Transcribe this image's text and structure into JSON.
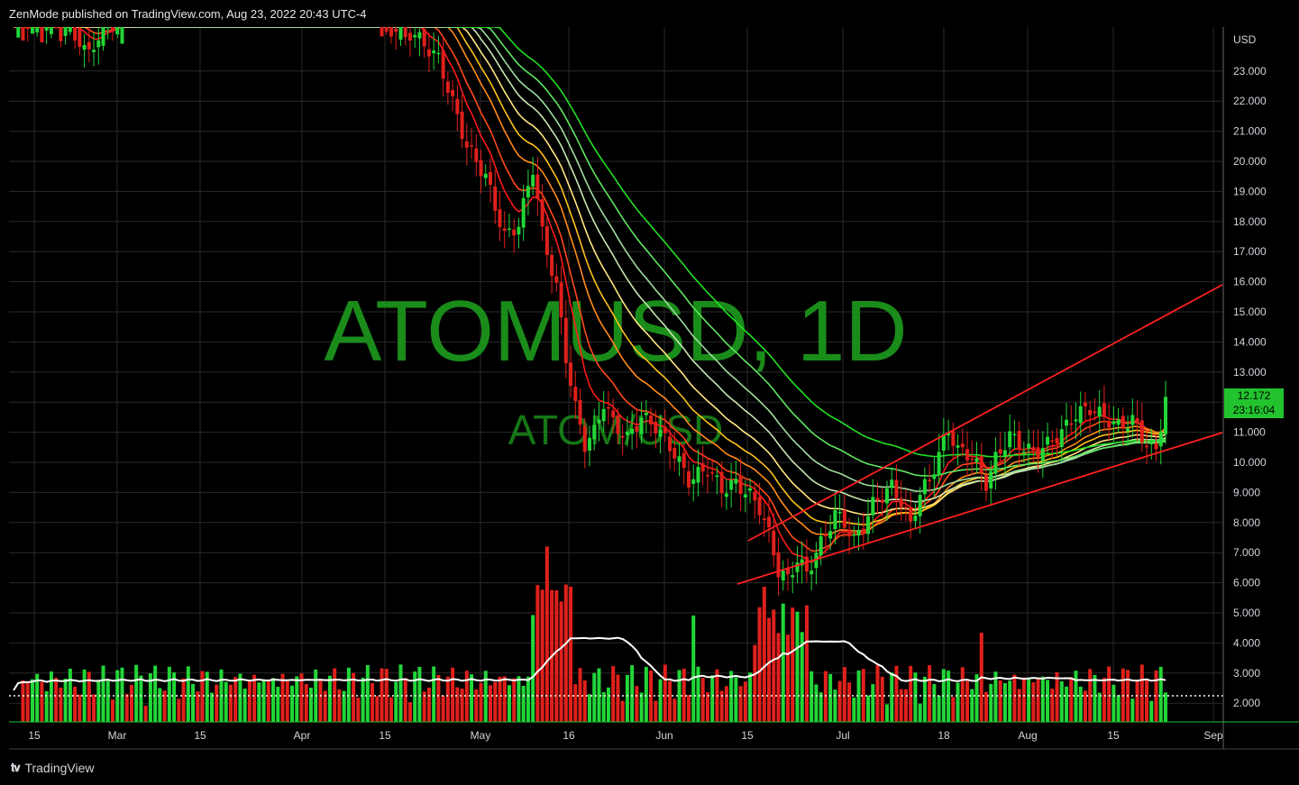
{
  "header": {
    "publisher_line": "ZenMode published on TradingView.com, Aug 23, 2022 20:43 UTC-4"
  },
  "watermark": {
    "symbol_tf": "ATOMUSD, 1D",
    "pair": "ATOM/USD"
  },
  "footer": {
    "brand": "TradingView",
    "logo_icon": "tradingview-logo-icon"
  },
  "price_tag": {
    "price": "12.172",
    "countdown": "23:16:04",
    "color": "#22c32e"
  },
  "colors": {
    "up": "#22d638",
    "down": "#e0201b",
    "grid": "#2a2a2a",
    "bg": "#000000",
    "watermark": "#1a8c1a",
    "trend": "#ff2020",
    "vol_ma": "#ffffff",
    "ribbon": [
      "#ff1a1a",
      "#ff4a1a",
      "#ff8a1a",
      "#ffc21a",
      "#ffe680",
      "#c8e6b0",
      "#9fdc9f",
      "#5fe65f",
      "#22e022"
    ]
  },
  "chart_data": {
    "type": "candlestick",
    "title": "ATOMUSD, 1D",
    "subtitle": "ATOM/USD",
    "price_axis": {
      "label": "USD",
      "ticks": [
        "23.000",
        "22.000",
        "21.000",
        "20.000",
        "19.000",
        "18.000",
        "17.000",
        "16.000",
        "15.000",
        "14.000",
        "13.000",
        "12.000",
        "11.000",
        "10.000",
        "9.000",
        "8.000",
        "7.000",
        "6.000",
        "5.000",
        "4.000",
        "3.000",
        "2.000"
      ],
      "range": [
        1.3,
        24.3
      ],
      "last_price": 12.172
    },
    "time_axis": {
      "ticks": [
        "15",
        "Mar",
        "15",
        "Apr",
        "15",
        "May",
        "16",
        "Jun",
        "15",
        "Jul",
        "18",
        "Aug",
        "15",
        "Sep"
      ]
    },
    "ohlc_daily_approx": [
      {
        "o": 11.9,
        "h": 12.3,
        "l": 11.8,
        "c": 12.1
      },
      {
        "o": 12.1,
        "h": 12.2,
        "l": 11.5,
        "c": 11.6
      },
      {
        "o": 11.6,
        "h": 12.4,
        "l": 11.4,
        "c": 12.2
      },
      {
        "o": 12.2,
        "h": 12.5,
        "l": 11.9,
        "c": 12.0
      },
      {
        "o": 12.0,
        "h": 12.1,
        "l": 11.6,
        "c": 11.8
      },
      {
        "o": 11.8,
        "h": 12.0,
        "l": 11.3,
        "c": 11.5
      },
      {
        "o": 11.5,
        "h": 11.9,
        "l": 11.2,
        "c": 11.7
      },
      {
        "o": 11.7,
        "h": 12.3,
        "l": 11.6,
        "c": 12.1
      },
      {
        "o": 12.1,
        "h": 12.2,
        "l": 11.7,
        "c": 11.9
      },
      {
        "o": 11.9,
        "h": 12.0,
        "l": 11.1,
        "c": 11.3
      },
      {
        "o": 11.3,
        "h": 11.8,
        "l": 10.1,
        "c": 10.5
      },
      {
        "o": 10.5,
        "h": 11.0,
        "l": 10.3,
        "c": 10.8
      },
      {
        "o": 10.8,
        "h": 12.5,
        "l": 10.6,
        "c": 12.3
      }
    ],
    "volume_ma": "white line, period ~20",
    "ribbon_ema_count": 9,
    "trendlines": [
      "upper channel line from Jun low toward ~16 at right edge",
      "lower channel line from ~5.9 (mid-Jun) toward ~10.9 at right edge"
    ]
  }
}
